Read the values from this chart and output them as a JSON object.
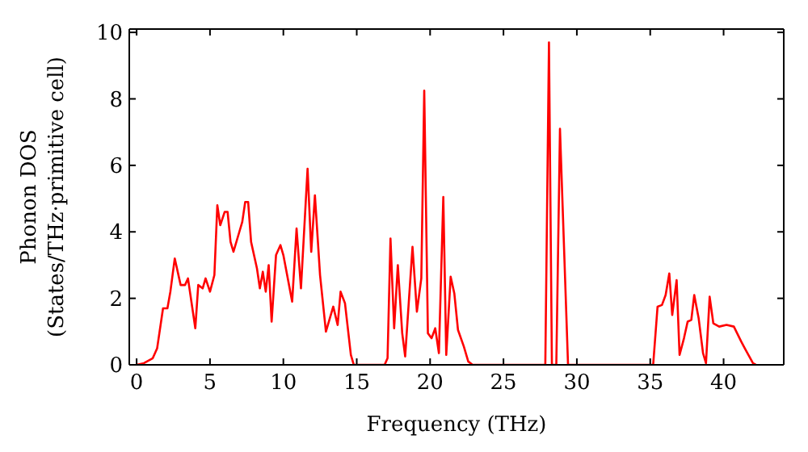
{
  "chart_data": {
    "type": "line",
    "xlabel": "Frequency (THz)",
    "ylabel": "Phonon DOS\n(States/THz·primitive cell)",
    "xlim": [
      -0.5,
      44.1
    ],
    "xticks": [
      0,
      5,
      10,
      15,
      20,
      25,
      30,
      35,
      40
    ],
    "ylim": [
      0,
      10.1
    ],
    "yticks": [
      0,
      2,
      4,
      6,
      8,
      10
    ],
    "marker": "none",
    "line_style": "solid",
    "series": [
      {
        "color": "#ff0000",
        "x": [
          0,
          0.5,
          1.1,
          1.4,
          1.8,
          2.1,
          2.3,
          2.6,
          3.0,
          3.3,
          3.5,
          4.0,
          4.2,
          4.5,
          4.7,
          5.0,
          5.3,
          5.5,
          5.7,
          6.0,
          6.2,
          6.4,
          6.6,
          7.0,
          7.2,
          7.4,
          7.6,
          7.8,
          8.2,
          8.4,
          8.6,
          8.8,
          9.0,
          9.2,
          9.5,
          9.8,
          10.0,
          10.6,
          10.9,
          11.2,
          11.65,
          11.9,
          12.15,
          12.5,
          12.9,
          13.4,
          13.7,
          13.9,
          14.2,
          14.6,
          14.8,
          16.9,
          17.1,
          17.3,
          17.55,
          17.8,
          18.1,
          18.3,
          18.8,
          19.1,
          19.4,
          19.6,
          19.85,
          20.1,
          20.35,
          20.6,
          20.9,
          21.1,
          21.4,
          21.65,
          21.9,
          22.3,
          22.6,
          22.9,
          27.85,
          28.1,
          28.3,
          28.6,
          28.85,
          29.4,
          35.2,
          35.5,
          35.8,
          36.05,
          36.3,
          36.5,
          36.8,
          37.0,
          37.3,
          37.55,
          37.8,
          38.0,
          38.3,
          38.6,
          38.8,
          39.05,
          39.3,
          39.7,
          40.2,
          40.7,
          41.2,
          41.5,
          42.0,
          42.2
        ],
        "values": [
          0,
          0.05,
          0.2,
          0.5,
          1.7,
          1.7,
          2.2,
          3.2,
          2.4,
          2.4,
          2.6,
          1.1,
          2.4,
          2.3,
          2.6,
          2.2,
          2.7,
          4.8,
          4.2,
          4.6,
          4.6,
          3.7,
          3.4,
          4.0,
          4.3,
          4.9,
          4.9,
          3.7,
          2.9,
          2.3,
          2.8,
          2.2,
          3.0,
          1.3,
          3.3,
          3.6,
          3.3,
          1.9,
          4.1,
          2.3,
          5.9,
          3.4,
          5.1,
          2.7,
          1.0,
          1.75,
          1.2,
          2.2,
          1.85,
          0.3,
          0,
          0,
          0.2,
          3.8,
          1.1,
          3.0,
          0.95,
          0.25,
          3.55,
          1.6,
          2.6,
          8.25,
          0.95,
          0.8,
          1.1,
          0.35,
          5.05,
          0.3,
          2.65,
          2.15,
          1.05,
          0.55,
          0.1,
          0,
          0,
          9.7,
          0,
          0,
          7.1,
          0,
          0,
          1.75,
          1.8,
          2.1,
          2.75,
          1.5,
          2.55,
          0.3,
          0.8,
          1.3,
          1.35,
          2.1,
          1.4,
          0.35,
          0.05,
          2.05,
          1.25,
          1.15,
          1.2,
          1.15,
          0.7,
          0.45,
          0.05,
          0
        ]
      }
    ]
  }
}
